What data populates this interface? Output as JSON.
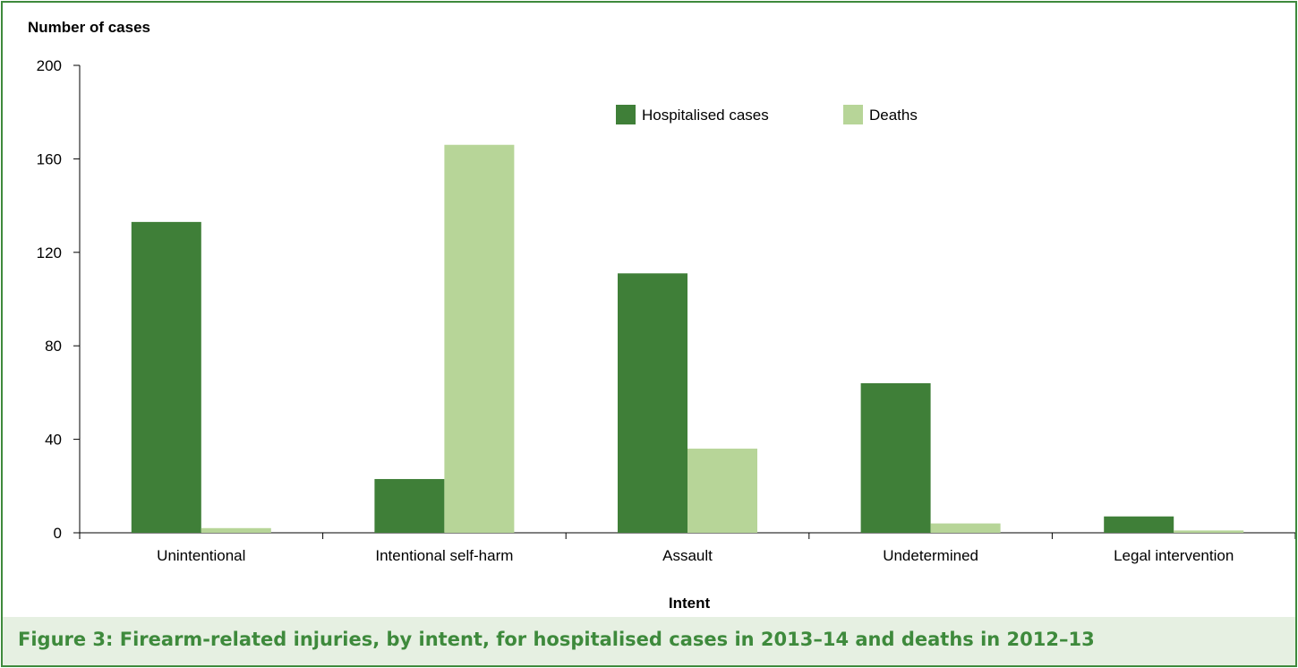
{
  "figure": {
    "caption": "Figure 3: Firearm-related injuries, by intent, for hospitalised cases in 2013–14 and deaths in 2012–13"
  },
  "chart_data": {
    "type": "bar",
    "ylabel": "Number of  cases",
    "xlabel": "Intent",
    "ylim": [
      0,
      200
    ],
    "yticks": [
      "0",
      "40",
      "80",
      "120",
      "160",
      "200"
    ],
    "grid": false,
    "legend_position": "top-center",
    "categories": [
      "Unintentional",
      "Intentional self-harm",
      "Assault",
      "Undetermined",
      "Legal intervention"
    ],
    "series": [
      {
        "name": "Hospitalised cases",
        "color": "#3f7f38",
        "values": [
          133,
          23,
          111,
          64,
          7
        ]
      },
      {
        "name": "Deaths",
        "color": "#b7d598",
        "values": [
          2,
          166,
          36,
          4,
          1
        ]
      }
    ]
  }
}
